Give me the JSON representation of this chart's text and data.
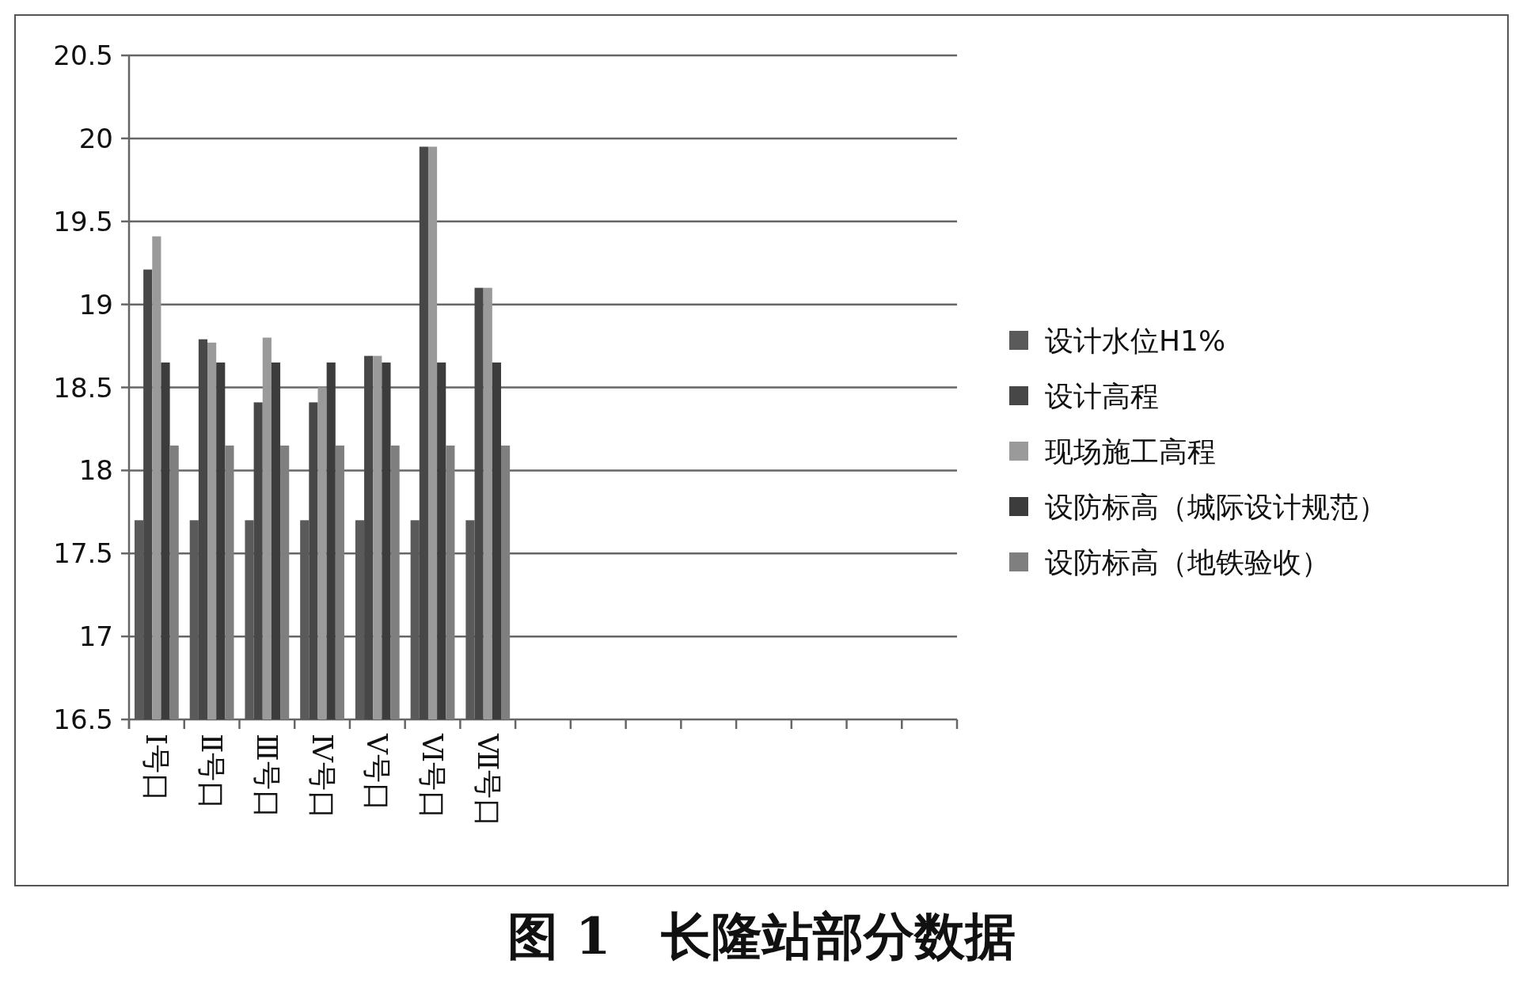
{
  "chart_data": {
    "type": "bar",
    "title": "图 1　长隆站部分数据",
    "categories": [
      "Ⅰ号口",
      "Ⅱ号口",
      "Ⅲ号口",
      "Ⅳ号口",
      "Ⅴ号口",
      "Ⅵ号口",
      "Ⅶ号口",
      null,
      null,
      null,
      null,
      null,
      null,
      null,
      null
    ],
    "series": [
      {
        "name": "设计水位H1%",
        "color": "#5a5a5a",
        "values": [
          17.7,
          17.7,
          17.7,
          17.7,
          17.7,
          17.7,
          17.7,
          null,
          null,
          null,
          null,
          null,
          null,
          null,
          null
        ]
      },
      {
        "name": "设计高程",
        "color": "#474747",
        "values": [
          19.21,
          18.79,
          18.41,
          18.41,
          18.69,
          19.95,
          19.1,
          null,
          null,
          null,
          null,
          null,
          null,
          null,
          null
        ]
      },
      {
        "name": "现场施工高程",
        "color": "#9a9a9a",
        "values": [
          19.41,
          18.77,
          18.8,
          18.5,
          18.69,
          19.95,
          19.1,
          null,
          null,
          null,
          null,
          null,
          null,
          null,
          null
        ]
      },
      {
        "name": "设防标高（城际设计规范）",
        "color": "#3c3c3c",
        "values": [
          18.65,
          18.65,
          18.65,
          18.65,
          18.65,
          18.65,
          18.65,
          null,
          null,
          null,
          null,
          null,
          null,
          null,
          null
        ]
      },
      {
        "name": "设防标高（地铁验收）",
        "color": "#7f7f7f",
        "values": [
          18.15,
          18.15,
          18.15,
          18.15,
          18.15,
          18.15,
          18.15,
          null,
          null,
          null,
          null,
          null,
          null,
          null,
          null
        ]
      }
    ],
    "ylim": [
      16.5,
      20.5
    ],
    "yticks": [
      16.5,
      17,
      17.5,
      18,
      18.5,
      19,
      19.5,
      20,
      20.5
    ],
    "grid": "y",
    "legend": "right"
  }
}
